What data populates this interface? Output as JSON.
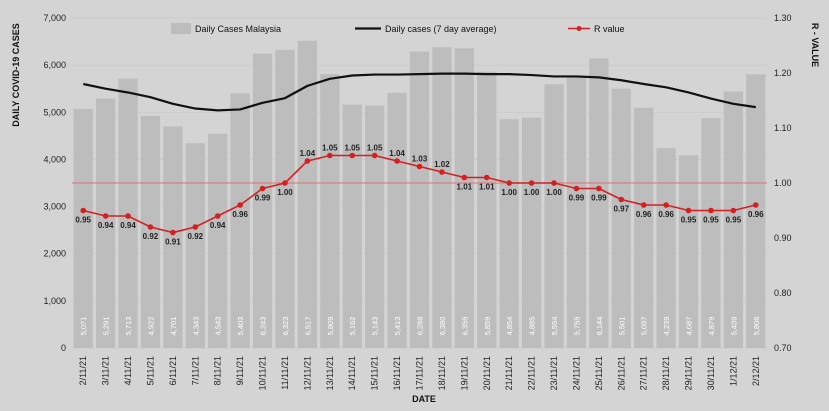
{
  "chart_data": {
    "type": "bar",
    "xlabel": "DATE",
    "ylabel": "DAILY COVID-19 CASES",
    "y2label": "R - VALUE",
    "ylim": [
      0,
      7000
    ],
    "y2lim": [
      0.7,
      1.3
    ],
    "y_ticks": [
      "0",
      "1,000",
      "2,000",
      "3,000",
      "4,000",
      "5,000",
      "6,000",
      "7,000"
    ],
    "y2_ticks": [
      "0.70",
      "0.80",
      "0.90",
      "1.00",
      "1.10",
      "1.20",
      "1.30"
    ],
    "reference_line_r": 1.0,
    "categories": [
      "2/11/21",
      "3/11/21",
      "4/11/21",
      "5/11/21",
      "6/11/21",
      "7/11/21",
      "8/11/21",
      "9/11/21",
      "10/11/21",
      "11/11/21",
      "12/11/21",
      "13/11/21",
      "14/11/21",
      "15/11/21",
      "16/11/21",
      "17/11/21",
      "18/11/21",
      "19/11/21",
      "20/11/21",
      "21/11/21",
      "22/11/21",
      "23/11/21",
      "24/11/21",
      "25/11/21",
      "26/11/21",
      "27/11/21",
      "28/11/21",
      "29/11/21",
      "30/11/21",
      "1/12/21",
      "2/12/21"
    ],
    "series": [
      {
        "name": "Daily Cases Malaysia",
        "type": "bar",
        "color": "#bdbdbd",
        "values": [
          5071,
          5291,
          5713,
          4922,
          4701,
          4343,
          4543,
          5403,
          6243,
          6323,
          6517,
          5809,
          5162,
          5143,
          5413,
          6288,
          6380,
          6355,
          5859,
          4854,
          4885,
          5594,
          5755,
          6144,
          5501,
          5097,
          4239,
          4087,
          4879,
          5439,
          5806
        ],
        "labels": [
          "5,071",
          "5,291",
          "5,713",
          "4,922",
          "4,701",
          "4,343",
          "4,543",
          "5,403",
          "6,243",
          "6,323",
          "6,517",
          "5,809",
          "5,162",
          "5,143",
          "5,413",
          "6,288",
          "6,380",
          "6,355",
          "5,859",
          "4,854",
          "4,885",
          "5,594",
          "5,755",
          "6,144",
          "5,501",
          "5,097",
          "4,239",
          "4,087",
          "4,879",
          "5,439",
          "5,806"
        ]
      },
      {
        "name": "Daily cases (7 day average)",
        "type": "line",
        "color": "#111111",
        "values": [
          5600,
          5500,
          5420,
          5320,
          5180,
          5080,
          5040,
          5060,
          5200,
          5300,
          5560,
          5710,
          5780,
          5800,
          5800,
          5810,
          5820,
          5820,
          5810,
          5810,
          5790,
          5760,
          5760,
          5740,
          5680,
          5600,
          5530,
          5420,
          5290,
          5180,
          5110
        ]
      },
      {
        "name": "R value",
        "type": "line",
        "axis": "right",
        "color": "#d42020",
        "values": [
          0.95,
          0.94,
          0.94,
          0.92,
          0.91,
          0.92,
          0.94,
          0.96,
          0.99,
          1.0,
          1.04,
          1.05,
          1.05,
          1.05,
          1.04,
          1.03,
          1.02,
          1.01,
          1.01,
          1.0,
          1.0,
          1.0,
          0.99,
          0.99,
          0.97,
          0.96,
          0.96,
          0.95,
          0.95,
          0.95,
          0.96
        ],
        "labels": [
          "0.95",
          "0.94",
          "0.94",
          "0.92",
          "0.91",
          "0.92",
          "0.94",
          "0.96",
          "0.99",
          "1.00",
          "1.04",
          "1.05",
          "1.05",
          "1.05",
          "1.04",
          "1.03",
          "1.02",
          "1.01",
          "1.01",
          "1.00",
          "1.00",
          "1.00",
          "0.99",
          "0.99",
          "0.97",
          "0.96",
          "0.96",
          "0.95",
          "0.95",
          "0.95",
          "0.96"
        ]
      }
    ],
    "legend": "top"
  }
}
